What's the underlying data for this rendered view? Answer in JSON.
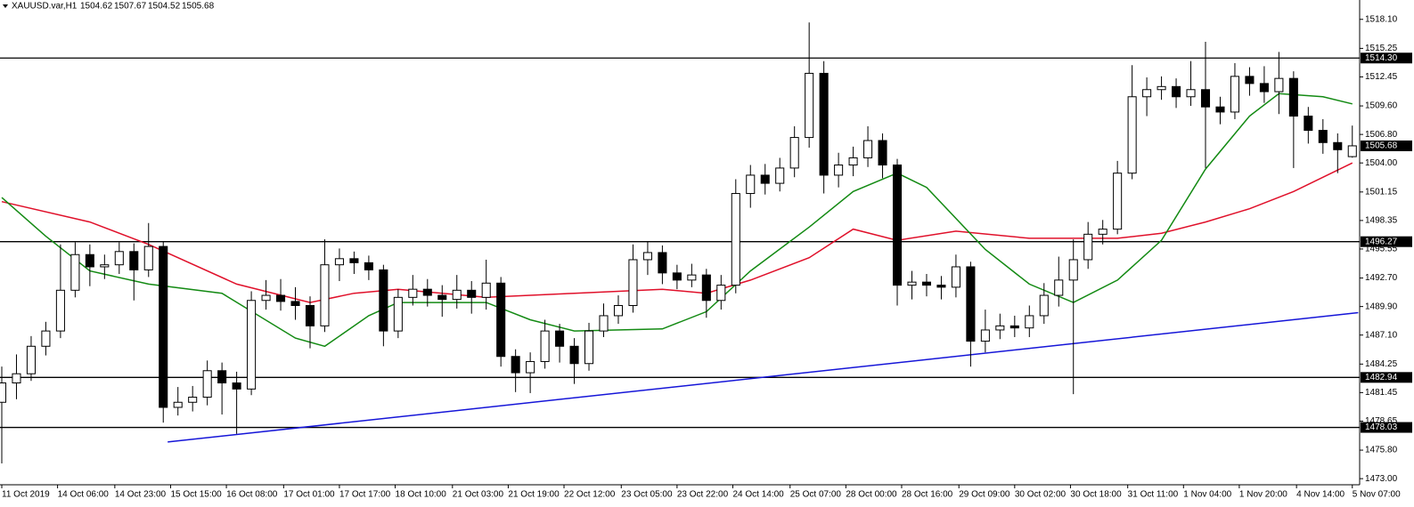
{
  "chart_data": {
    "type": "candlestick",
    "title": "XAUUSD.var,H1",
    "xlim": [
      0,
      92.5
    ],
    "ylim": [
      1472.4,
      1520.0
    ],
    "xticks": [
      {
        "value": 0,
        "label": "11 Oct 2019"
      },
      {
        "value": 3.8,
        "label": "14 Oct 06:00"
      },
      {
        "value": 7.7,
        "label": "14 Oct 23:00"
      },
      {
        "value": 11.5,
        "label": "15 Oct 15:00"
      },
      {
        "value": 15.3,
        "label": "16 Oct 08:00"
      },
      {
        "value": 19.2,
        "label": "17 Oct 01:00"
      },
      {
        "value": 23,
        "label": "17 Oct 17:00"
      },
      {
        "value": 26.8,
        "label": "18 Oct 10:00"
      },
      {
        "value": 30.7,
        "label": "21 Oct 03:00"
      },
      {
        "value": 34.5,
        "label": "21 Oct 19:00"
      },
      {
        "value": 38.3,
        "label": "22 Oct 12:00"
      },
      {
        "value": 42.2,
        "label": "23 Oct 05:00"
      },
      {
        "value": 46,
        "label": "23 Oct 22:00"
      },
      {
        "value": 49.8,
        "label": "24 Oct 14:00"
      },
      {
        "value": 53.7,
        "label": "25 Oct 07:00"
      },
      {
        "value": 57.5,
        "label": "28 Oct 00:00"
      },
      {
        "value": 61.3,
        "label": "28 Oct 16:00"
      },
      {
        "value": 65.2,
        "label": "29 Oct 09:00"
      },
      {
        "value": 69,
        "label": "30 Oct 02:00"
      },
      {
        "value": 72.8,
        "label": "30 Oct 18:00"
      },
      {
        "value": 76.7,
        "label": "31 Oct 11:00"
      },
      {
        "value": 80.5,
        "label": "1 Nov 04:00"
      },
      {
        "value": 84.3,
        "label": "1 Nov 20:00"
      },
      {
        "value": 88.2,
        "label": "4 Nov 14:00"
      },
      {
        "value": 92,
        "label": "5 Nov 07:00"
      }
    ],
    "yticks": [
      {
        "value": 1518.1,
        "label": "1518.10"
      },
      1515.25,
      1512.45,
      {
        "value": 1509.6,
        "label": "1509.60"
      },
      {
        "value": 1506.8,
        "label": "1506.80"
      },
      {
        "value": 1504,
        "label": "1504.00"
      },
      1501.15,
      1498.35,
      1495.55,
      {
        "value": 1492.7,
        "label": "1492.70"
      },
      {
        "value": 1489.9,
        "label": "1489.90"
      },
      {
        "value": 1487.1,
        "label": "1487.10"
      },
      1484.25,
      1481.45,
      1478.65,
      {
        "value": 1475.8,
        "label": "1475.80"
      },
      {
        "value": 1473,
        "label": "1473.00"
      }
    ],
    "series": {
      "bull_color": "#ffffff",
      "bear_color": "#000000",
      "color": "#000000",
      "open": [
        1480.5,
        1482.4,
        1483.3,
        1486.0,
        1487.5,
        1491.5,
        1495.0,
        1493.8,
        1494.0,
        1495.3,
        1493.5,
        1495.8,
        1480.0,
        1480.5,
        1481.0,
        1483.6,
        1482.4,
        1481.8,
        1490.5,
        1491.0,
        1490.4,
        1490.0,
        1488.0,
        1494.0,
        1494.6,
        1494.2,
        1493.5,
        1487.5,
        1490.8,
        1491.6,
        1491.0,
        1490.6,
        1491.5,
        1490.8,
        1492.2,
        1485.0,
        1483.4,
        1484.5,
        1487.5,
        1486.0,
        1484.3,
        1487.5,
        1489.0,
        1490.0,
        1494.5,
        1495.2,
        1493.2,
        1492.5,
        1493.0,
        1490.5,
        1492.0,
        1501.0,
        1502.8,
        1502.0,
        1503.5,
        1506.5,
        1512.8,
        1502.8,
        1503.8,
        1504.5,
        1506.2,
        1503.8,
        1492.0,
        1492.3,
        1492.0,
        1491.8,
        1493.8,
        1486.5,
        1487.6,
        1488.0,
        1487.8,
        1489.0,
        1491.0,
        1492.5,
        1494.5,
        1497.0,
        1497.5,
        1503.0,
        1510.5,
        1511.2,
        1511.5,
        1510.5,
        1511.2,
        1509.5,
        1509.0,
        1512.5,
        1511.8,
        1511.0,
        1512.3,
        1508.6,
        1507.2,
        1506.0,
        1504.62
      ],
      "high": [
        1484.0,
        1485.2,
        1487.0,
        1488.4,
        1496.0,
        1496.2,
        1496.0,
        1495.0,
        1496.2,
        1496.1,
        1498.1,
        1496.3,
        1482.0,
        1482.1,
        1484.6,
        1484.4,
        1483.5,
        1491.4,
        1492.5,
        1492.6,
        1491.8,
        1490.9,
        1496.5,
        1495.6,
        1495.3,
        1494.9,
        1494.0,
        1491.6,
        1493.0,
        1492.6,
        1492.0,
        1493.0,
        1492.4,
        1494.5,
        1492.8,
        1485.7,
        1485.4,
        1488.6,
        1488.2,
        1486.8,
        1488.3,
        1490.2,
        1491.0,
        1496.0,
        1496.3,
        1495.9,
        1494.0,
        1494.1,
        1493.6,
        1493.0,
        1502.4,
        1503.8,
        1503.9,
        1504.5,
        1507.6,
        1517.8,
        1514.0,
        1505.0,
        1505.6,
        1507.6,
        1506.9,
        1504.4,
        1493.4,
        1493.1,
        1492.9,
        1495.0,
        1494.3,
        1489.6,
        1489.2,
        1489.0,
        1490.0,
        1492.2,
        1494.8,
        1496.5,
        1498.2,
        1498.4,
        1504.2,
        1513.6,
        1512.4,
        1512.5,
        1512.3,
        1514.0,
        1515.9,
        1510.5,
        1513.8,
        1513.4,
        1513.5,
        1514.9,
        1513.0,
        1509.5,
        1508.3,
        1506.9,
        1507.67
      ],
      "low": [
        1474.5,
        1480.8,
        1482.6,
        1485.1,
        1486.8,
        1490.8,
        1491.9,
        1492.6,
        1493.1,
        1490.5,
        1492.8,
        1478.5,
        1479.2,
        1479.6,
        1480.2,
        1479.3,
        1477.4,
        1481.2,
        1489.6,
        1489.5,
        1488.6,
        1485.8,
        1487.4,
        1492.4,
        1493.1,
        1492.5,
        1486.0,
        1486.8,
        1490.0,
        1489.9,
        1488.9,
        1489.7,
        1489.2,
        1489.6,
        1484.0,
        1481.5,
        1481.4,
        1483.8,
        1484.4,
        1482.3,
        1483.6,
        1486.9,
        1488.2,
        1489.3,
        1493.0,
        1492.1,
        1491.6,
        1491.8,
        1488.8,
        1489.6,
        1491.2,
        1499.6,
        1500.9,
        1501.2,
        1502.6,
        1505.5,
        1501.0,
        1501.6,
        1502.7,
        1503.6,
        1502.5,
        1490.0,
        1490.6,
        1490.9,
        1490.6,
        1490.8,
        1484.0,
        1485.4,
        1486.7,
        1486.9,
        1486.9,
        1488.2,
        1489.9,
        1481.3,
        1493.6,
        1496.0,
        1497.0,
        1502.4,
        1508.6,
        1510.2,
        1509.4,
        1509.6,
        1503.5,
        1507.8,
        1508.3,
        1510.6,
        1509.9,
        1508.8,
        1503.5,
        1505.9,
        1504.9,
        1503.0,
        1504.52
      ],
      "close": [
        1482.4,
        1483.3,
        1486.0,
        1487.5,
        1491.5,
        1495.0,
        1493.8,
        1494.0,
        1495.3,
        1493.5,
        1495.8,
        1480.0,
        1480.5,
        1481.0,
        1483.6,
        1482.4,
        1481.8,
        1490.5,
        1491.0,
        1490.4,
        1490.0,
        1488.0,
        1494.0,
        1494.6,
        1494.2,
        1493.5,
        1487.5,
        1490.8,
        1491.6,
        1491.0,
        1490.6,
        1491.5,
        1490.8,
        1492.2,
        1485.0,
        1483.4,
        1484.5,
        1487.5,
        1486.0,
        1484.3,
        1487.5,
        1489.0,
        1490.0,
        1494.5,
        1495.2,
        1493.2,
        1492.5,
        1493.0,
        1490.5,
        1492.0,
        1501.0,
        1502.8,
        1502.0,
        1503.5,
        1506.5,
        1512.8,
        1502.8,
        1503.8,
        1504.5,
        1506.2,
        1503.8,
        1492.0,
        1492.3,
        1492.0,
        1491.8,
        1493.8,
        1486.5,
        1487.6,
        1488.0,
        1487.8,
        1489.0,
        1491.0,
        1492.5,
        1494.5,
        1497.0,
        1497.5,
        1503.0,
        1510.5,
        1511.2,
        1511.5,
        1510.5,
        1511.2,
        1509.5,
        1509.0,
        1512.5,
        1511.8,
        1511.0,
        1512.3,
        1508.6,
        1507.2,
        1506.0,
        1505.3,
        1505.68
      ]
    },
    "lines": [
      {
        "color": "#e0102a",
        "x": [
          0,
          6,
          10,
          16,
          21,
          24,
          27,
          33,
          39,
          45,
          48,
          51,
          55,
          58,
          61,
          65,
          70,
          73,
          76,
          79,
          82,
          85,
          88,
          92
        ],
        "values": [
          1500.2,
          1498.2,
          1496.0,
          1492.1,
          1490.3,
          1491.2,
          1491.6,
          1490.8,
          1491.2,
          1491.6,
          1491.2,
          1492.5,
          1494.7,
          1497.5,
          1496.4,
          1497.3,
          1496.6,
          1496.6,
          1496.6,
          1497.1,
          1498.2,
          1499.5,
          1501.2,
          1504.0
        ]
      },
      {
        "color": "#138a13",
        "x": [
          0,
          3,
          6,
          10,
          15,
          20,
          22,
          25,
          27,
          33,
          36,
          39,
          45,
          48,
          51,
          55,
          58,
          61,
          63,
          67,
          70,
          73,
          76,
          79,
          82,
          85,
          87,
          90,
          92
        ],
        "values": [
          1500.6,
          1496.8,
          1493.4,
          1492.1,
          1491.2,
          1486.8,
          1486.0,
          1489.0,
          1490.3,
          1490.3,
          1488.6,
          1487.5,
          1487.7,
          1489.4,
          1493.4,
          1497.7,
          1501.2,
          1503.0,
          1501.6,
          1495.5,
          1492.1,
          1490.3,
          1492.5,
          1496.4,
          1503.4,
          1508.6,
          1510.8,
          1510.5,
          1509.8
        ]
      },
      {
        "color": "#1515d8",
        "x": [
          11.3,
          92.4
        ],
        "values": [
          1476.6,
          1489.3
        ]
      }
    ],
    "levels": [
      {
        "value": 1514.3,
        "label": "1514.30"
      },
      1496.27,
      1482.94,
      1478.03
    ]
  }
}
